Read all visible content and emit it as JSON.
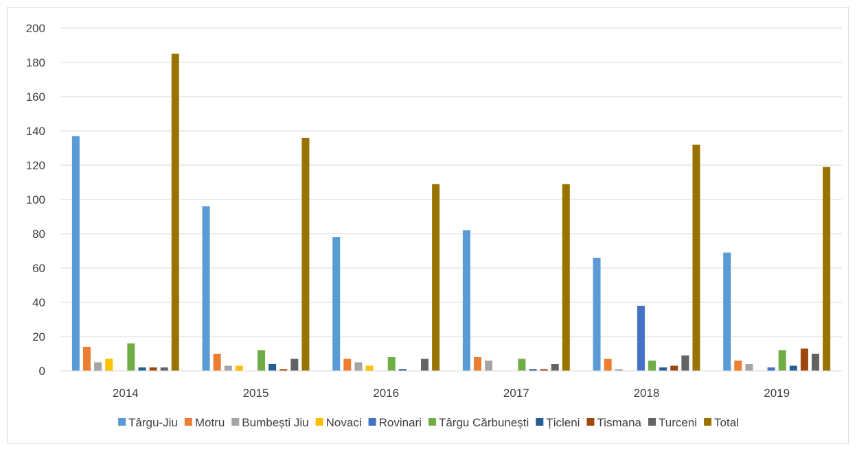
{
  "chart_data": {
    "type": "bar",
    "title": "",
    "xlabel": "",
    "ylabel": "",
    "ylim": [
      0,
      200
    ],
    "yticks": [
      0,
      20,
      40,
      60,
      80,
      100,
      120,
      140,
      160,
      180,
      200
    ],
    "grid": true,
    "legend_position": "bottom",
    "categories": [
      "2014",
      "2015",
      "2016",
      "2017",
      "2018",
      "2019"
    ],
    "series": [
      {
        "name": "Târgu-Jiu",
        "color": "#5B9BD5",
        "values": [
          137,
          96,
          78,
          82,
          66,
          69
        ]
      },
      {
        "name": "Motru",
        "color": "#ED7D31",
        "values": [
          14,
          10,
          7,
          8,
          7,
          6
        ]
      },
      {
        "name": "Bumbești Jiu",
        "color": "#A5A5A5",
        "values": [
          5,
          3,
          5,
          6,
          1,
          4
        ]
      },
      {
        "name": "Novaci",
        "color": "#FFC000",
        "values": [
          7,
          3,
          3,
          0,
          0,
          0
        ]
      },
      {
        "name": "Rovinari",
        "color": "#4472C4",
        "values": [
          0,
          0,
          0,
          0,
          38,
          2
        ]
      },
      {
        "name": "Târgu Cărbunești",
        "color": "#70AD47",
        "values": [
          16,
          12,
          8,
          7,
          6,
          12
        ]
      },
      {
        "name": "Țicleni",
        "color": "#255E91",
        "values": [
          2,
          4,
          1,
          1,
          2,
          3
        ]
      },
      {
        "name": "Tismana",
        "color": "#9E480E",
        "values": [
          2,
          1,
          0,
          1,
          3,
          13
        ]
      },
      {
        "name": "Turceni",
        "color": "#636363",
        "values": [
          2,
          7,
          7,
          4,
          9,
          10
        ]
      },
      {
        "name": "Total",
        "color": "#997300",
        "values": [
          185,
          136,
          109,
          109,
          132,
          119
        ]
      }
    ]
  }
}
